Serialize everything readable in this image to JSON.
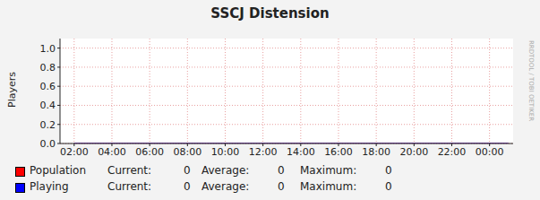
{
  "chart_data": {
    "type": "line",
    "title": "SSCJ Distension",
    "y_label": "Players",
    "watermark": "RRDTOOL / TOBI OETIKER",
    "x": [
      2,
      3,
      4,
      5,
      6,
      7,
      8,
      9,
      10,
      11,
      12,
      13,
      14,
      15,
      16,
      17,
      18,
      19,
      20,
      21,
      22,
      23,
      24,
      25
    ],
    "xlim": [
      1.25,
      25.25
    ],
    "xticks": [
      {
        "value": 2,
        "label": "02:00"
      },
      {
        "value": 4,
        "label": "04:00"
      },
      {
        "value": 6,
        "label": "06:00"
      },
      {
        "value": 8,
        "label": "08:00"
      },
      {
        "value": 10,
        "label": "10:00"
      },
      {
        "value": 12,
        "label": "12:00"
      },
      {
        "value": 14,
        "label": "14:00"
      },
      {
        "value": 16,
        "label": "16:00"
      },
      {
        "value": 18,
        "label": "18:00"
      },
      {
        "value": 20,
        "label": "20:00"
      },
      {
        "value": 22,
        "label": "22:00"
      },
      {
        "value": 24,
        "label": "00:00"
      }
    ],
    "ylim": [
      0,
      1.1
    ],
    "yticks": [
      {
        "value": 0,
        "label": "0.0"
      },
      {
        "value": 0.2,
        "label": "0.2"
      },
      {
        "value": 0.4,
        "label": "0.4"
      },
      {
        "value": 0.6,
        "label": "0.6"
      },
      {
        "value": 0.8,
        "label": "0.8"
      },
      {
        "value": 1,
        "label": "1.0"
      }
    ],
    "grid": true,
    "stat_labels": [
      "Current:",
      "Average:",
      "Maximum:"
    ],
    "series": [
      {
        "name": "Population",
        "color": "#ff0000",
        "values": [
          0,
          0,
          0,
          0,
          0,
          0,
          0,
          0,
          0,
          0,
          0,
          0,
          0,
          0,
          0,
          0,
          0,
          0,
          0,
          0,
          0,
          0,
          0,
          0
        ],
        "stats": [
          0,
          0,
          0
        ]
      },
      {
        "name": "Playing",
        "color": "#0000ff",
        "values": [
          0,
          0,
          0,
          0,
          0,
          0,
          0,
          0,
          0,
          0,
          0,
          0,
          0,
          0,
          0,
          0,
          0,
          0,
          0,
          0,
          0,
          0,
          0,
          0
        ],
        "stats": [
          0,
          0,
          0
        ]
      }
    ]
  }
}
